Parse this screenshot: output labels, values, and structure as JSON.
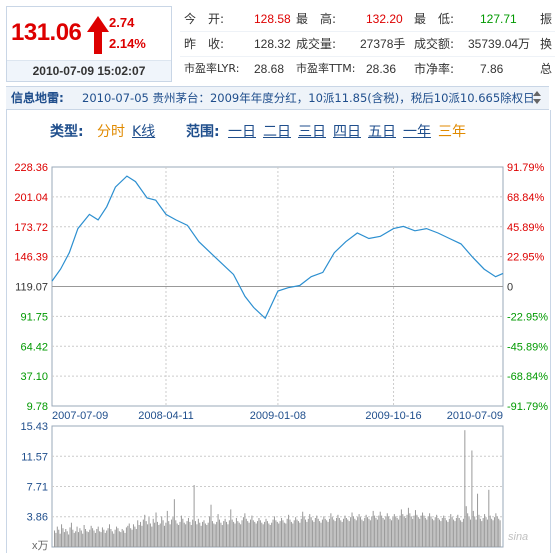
{
  "quote": {
    "price": "131.06",
    "change": "2.74",
    "change_pct": "2.14%",
    "datetime": "2010-07-09 15:02:07"
  },
  "stats": {
    "rows": [
      [
        {
          "label": "今　开:",
          "value": "128.58",
          "tone": "red"
        },
        {
          "label": "最　高:",
          "value": "132.20",
          "tone": "red"
        },
        {
          "label": "最　低:",
          "value": "127.71",
          "tone": "green"
        },
        {
          "label": "振",
          "value": "",
          "tone": ""
        }
      ],
      [
        {
          "label": "昨　收:",
          "value": "128.32",
          "tone": ""
        },
        {
          "label": "成交量:",
          "value": "27378手",
          "tone": ""
        },
        {
          "label": "成交额:",
          "value": "35739.04万",
          "tone": ""
        },
        {
          "label": "换",
          "value": "",
          "tone": ""
        }
      ],
      [
        {
          "label": "市盈率LYR:",
          "value": "28.68",
          "tone": ""
        },
        {
          "label": "市盈率TTM:",
          "value": "28.36",
          "tone": ""
        },
        {
          "label": "市净率:",
          "value": "7.86",
          "tone": ""
        },
        {
          "label": "总",
          "value": "",
          "tone": ""
        }
      ]
    ]
  },
  "news": {
    "label": "信息地雷:",
    "text": "2010-07-05 贵州茅台：2009年年度分红，10派11.85(含税)，税后10派10.665除权日"
  },
  "controls": {
    "type_label": "类型:",
    "type_options": [
      "分时",
      "K线"
    ],
    "range_label": "范围:",
    "range_options": [
      "一日",
      "二日",
      "三日",
      "四日",
      "五日",
      "一年",
      "三年"
    ]
  },
  "colors": {
    "price_up": "#dd0000",
    "price_down": "#009900",
    "line": "#2c8fd0",
    "accent_blue": "#1f4e8c",
    "selected_orange": "#e08a00"
  },
  "chart_data": [
    {
      "type": "line",
      "title": "",
      "xlabel": "",
      "ylabel": "",
      "x_ticks": [
        "2007-07-09",
        "2008-04-11",
        "2009-01-08",
        "2009-10-16",
        "2010-07-09"
      ],
      "y_left_ticks": [
        "228.36",
        "201.04",
        "173.72",
        "146.39",
        "119.07",
        "91.75",
        "64.42",
        "37.10",
        "9.78"
      ],
      "y_right_ticks": [
        "91.79%",
        "68.84%",
        "45.89%",
        "22.95%",
        "0",
        "-22.95%",
        "-45.89%",
        "-68.84%",
        "-91.79%"
      ],
      "ylim": [
        9.78,
        228.36
      ],
      "grid": true,
      "x": [
        "2007-07-09",
        "2007-07-30",
        "2007-08-20",
        "2007-09-10",
        "2007-10-08",
        "2007-10-29",
        "2007-11-19",
        "2007-12-10",
        "2008-01-07",
        "2008-01-28",
        "2008-02-25",
        "2008-03-17",
        "2008-04-11",
        "2008-05-05",
        "2008-06-02",
        "2008-06-30",
        "2008-07-28",
        "2008-08-25",
        "2008-09-22",
        "2008-10-20",
        "2008-11-10",
        "2008-12-08",
        "2009-01-08",
        "2009-02-02",
        "2009-03-02",
        "2009-03-30",
        "2009-04-27",
        "2009-05-25",
        "2009-06-22",
        "2009-07-20",
        "2009-08-17",
        "2009-09-14",
        "2009-10-16",
        "2009-11-09",
        "2009-12-07",
        "2010-01-04",
        "2010-02-01",
        "2010-03-01",
        "2010-03-29",
        "2010-04-26",
        "2010-05-24",
        "2010-06-21",
        "2010-07-09"
      ],
      "values": [
        124,
        135,
        150,
        172,
        185,
        180,
        192,
        210,
        220,
        215,
        200,
        198,
        185,
        180,
        175,
        160,
        150,
        140,
        130,
        110,
        100,
        90,
        115,
        118,
        120,
        128,
        132,
        150,
        160,
        168,
        163,
        165,
        172,
        174,
        170,
        172,
        168,
        163,
        158,
        146,
        135,
        128,
        131.06
      ]
    },
    {
      "type": "bar",
      "title": "",
      "ylabel": "",
      "unit": "x万",
      "y_ticks": [
        "15.43",
        "11.57",
        "7.71",
        "3.86"
      ],
      "ylim": [
        0,
        15.43
      ],
      "values": [
        2.1,
        1.8,
        2.6,
        2.2,
        1.7,
        2.9,
        2.4,
        1.9,
        2.3,
        2.0,
        1.6,
        2.5,
        3.1,
        2.2,
        1.8,
        2.0,
        2.6,
        1.9,
        2.4,
        2.1,
        1.7,
        2.8,
        2.3,
        2.0,
        1.9,
        2.2,
        2.7,
        2.4,
        2.1,
        1.8,
        2.3,
        2.6,
        2.0,
        1.9,
        2.5,
        2.2,
        1.8,
        2.1,
        2.4,
        2.9,
        2.3,
        2.0,
        1.7,
        2.2,
        2.6,
        2.4,
        2.0,
        1.9,
        2.3,
        2.1,
        1.8,
        2.5,
        2.7,
        3.0,
        2.4,
        2.2,
        2.9,
        2.6,
        2.3,
        3.4,
        2.8,
        3.2,
        2.7,
        3.5,
        4.1,
        3.3,
        2.9,
        3.8,
        3.0,
        2.6,
        3.6,
        3.1,
        4.4,
        3.2,
        2.8,
        3.0,
        3.9,
        3.4,
        2.7,
        3.1,
        4.6,
        3.3,
        2.9,
        3.5,
        3.8,
        6.1,
        3.4,
        3.0,
        2.8,
        3.2,
        4.0,
        3.6,
        3.1,
        2.9,
        3.3,
        3.7,
        3.2,
        2.8,
        3.5,
        7.9,
        3.3,
        2.9,
        3.6,
        3.1,
        2.7,
        3.2,
        3.4,
        3.0,
        2.8,
        3.1,
        3.9,
        5.4,
        3.3,
        3.0,
        2.9,
        3.2,
        4.2,
        3.5,
        3.1,
        2.8,
        3.3,
        3.6,
        3.2,
        2.9,
        3.4,
        4.8,
        3.5,
        3.2,
        3.0,
        3.7,
        3.3,
        3.1,
        2.9,
        3.4,
        3.8,
        4.3,
        3.6,
        3.3,
        3.1,
        3.5,
        4.0,
        3.4,
        3.2,
        3.0,
        3.3,
        3.7,
        3.4,
        3.1,
        2.9,
        3.2,
        3.6,
        3.3,
        3.0,
        2.8,
        3.1,
        3.5,
        3.9,
        3.4,
        3.2,
        3.0,
        3.3,
        3.7,
        3.4,
        3.1,
        3.0,
        3.6,
        4.1,
        3.5,
        3.2,
        3.0,
        3.4,
        3.8,
        3.5,
        3.3,
        3.1,
        3.6,
        4.5,
        3.9,
        3.5,
        3.2,
        3.6,
        4.2,
        3.8,
        3.4,
        3.2,
        3.7,
        4.0,
        3.6,
        3.3,
        3.1,
        3.5,
        3.9,
        3.6,
        3.4,
        3.2,
        3.6,
        4.3,
        3.8,
        3.5,
        3.3,
        3.7,
        4.1,
        3.7,
        3.4,
        3.2,
        3.6,
        4.0,
        3.7,
        3.5,
        3.3,
        3.8,
        4.4,
        3.9,
        3.6,
        3.4,
        3.8,
        4.2,
        3.8,
        3.5,
        3.3,
        3.7,
        4.1,
        3.8,
        3.6,
        3.4,
        3.9,
        4.6,
        4.0,
        3.7,
        3.5,
        4.0,
        4.5,
        4.0,
        3.7,
        3.5,
        3.9,
        4.3,
        3.9,
        3.6,
        3.4,
        3.8,
        4.2,
        3.9,
        3.7,
        3.5,
        4.0,
        4.8,
        4.2,
        3.9,
        3.7,
        4.1,
        5.0,
        4.3,
        3.9,
        3.6,
        4.0,
        4.7,
        4.1,
        3.8,
        3.6,
        4.0,
        4.4,
        4.0,
        3.7,
        3.5,
        3.9,
        4.3,
        3.9,
        3.6,
        3.4,
        3.8,
        4.1,
        3.7,
        3.5,
        3.3,
        3.7,
        4.0,
        3.7,
        3.4,
        3.2,
        3.6,
        4.2,
        3.8,
        3.5,
        3.3,
        3.7,
        4.1,
        3.7,
        3.4,
        3.2,
        3.6,
        14.9,
        5.2,
        4.3,
        3.8,
        3.5,
        12.3,
        4.6,
        3.9,
        3.5,
        6.8,
        4.1,
        3.6,
        3.3,
        3.7,
        4.2,
        3.8,
        3.5,
        7.3,
        4.0,
        3.6,
        3.4,
        3.8,
        4.3,
        3.9,
        3.6,
        3.4
      ]
    }
  ],
  "watermark": "sina"
}
